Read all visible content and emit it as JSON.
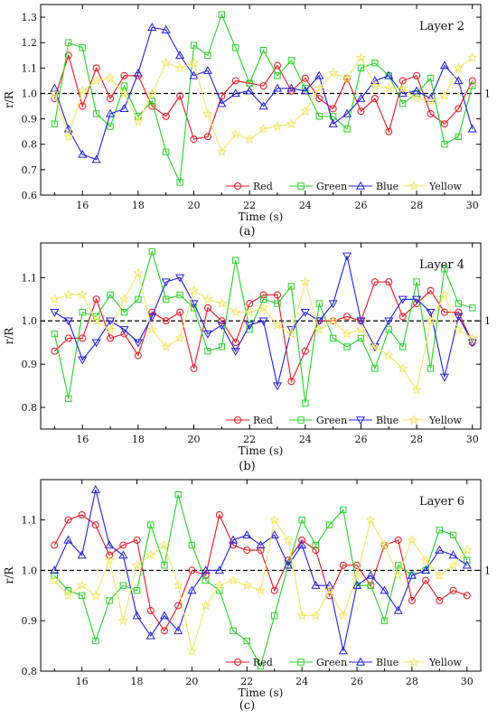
{
  "chart_data": [
    {
      "type": "line",
      "panel": "(a)",
      "title": "Layer 2",
      "xlabel": "Time (s)",
      "ylabel": "r/R",
      "xlim": [
        14.5,
        30.3
      ],
      "ylim": [
        0.6,
        1.35
      ],
      "xticks": [
        16,
        18,
        20,
        22,
        24,
        26,
        28,
        30
      ],
      "yticks": [
        0.6,
        0.7,
        0.8,
        0.9,
        1.0,
        1.1,
        1.2,
        1.3
      ],
      "ref_line": {
        "value": 1.0,
        "label": "1"
      },
      "legend": "bottom-right",
      "x": [
        15,
        15.5,
        16,
        16.5,
        17,
        17.5,
        18,
        18.5,
        19,
        19.5,
        20,
        20.5,
        21,
        21.5,
        22,
        22.5,
        23,
        23.5,
        24,
        24.5,
        25,
        25.5,
        26,
        26.5,
        27,
        27.5,
        28,
        28.5,
        29,
        29.5,
        30
      ],
      "series": [
        {
          "name": "Red",
          "color": "#e8141e",
          "marker": "circle",
          "values": [
            0.98,
            1.15,
            0.95,
            1.1,
            0.98,
            1.07,
            1.07,
            0.95,
            0.91,
            0.99,
            0.82,
            0.83,
            0.99,
            1.05,
            1.04,
            1.03,
            1.11,
            1.01,
            1.06,
            0.98,
            0.94,
            1.06,
            0.93,
            0.98,
            0.85,
            1.05,
            1.07,
            0.92,
            0.88,
            0.94,
            1.05
          ]
        },
        {
          "name": "Green",
          "color": "#28d228",
          "marker": "square",
          "values": [
            0.88,
            1.2,
            1.18,
            0.92,
            0.87,
            1.03,
            0.91,
            0.97,
            0.77,
            0.65,
            1.19,
            1.15,
            1.31,
            1.18,
            1.04,
            1.17,
            1.07,
            1.13,
            1.02,
            0.91,
            0.91,
            0.86,
            1.1,
            1.12,
            1.07,
            0.96,
            1.0,
            1.06,
            0.8,
            0.83,
            1.03
          ]
        },
        {
          "name": "Blue",
          "color": "#2020d8",
          "marker": "triangle-up",
          "values": [
            1.02,
            0.86,
            0.76,
            0.74,
            0.92,
            0.94,
            1.08,
            1.26,
            1.25,
            1.15,
            1.07,
            1.09,
            0.96,
            1.0,
            1.01,
            0.95,
            1.02,
            1.02,
            1.01,
            1.07,
            0.88,
            0.92,
            0.98,
            1.05,
            1.07,
            1.0,
            1.01,
            0.98,
            1.11,
            1.05,
            0.86
          ]
        },
        {
          "name": "Yellow",
          "color": "#f2e66a",
          "marker": "star",
          "values": [
            1.0,
            0.83,
            1.01,
            1.05,
            1.06,
            1.0,
            0.89,
            1.0,
            1.12,
            1.1,
            1.12,
            0.92,
            0.77,
            0.84,
            0.82,
            0.86,
            0.87,
            0.88,
            0.93,
            1.02,
            1.08,
            1.06,
            1.14,
            1.03,
            1.02,
            1.02,
            0.98,
            0.97,
            0.99,
            1.1,
            1.14
          ]
        }
      ]
    },
    {
      "type": "line",
      "panel": "(b)",
      "title": "Layer 4",
      "xlabel": "Time (s)",
      "ylabel": "r/R",
      "xlim": [
        14.5,
        30.3
      ],
      "ylim": [
        0.75,
        1.18
      ],
      "xticks": [
        16,
        18,
        20,
        22,
        24,
        26,
        28,
        30
      ],
      "yticks": [
        0.8,
        0.9,
        1.0,
        1.1
      ],
      "ref_line": {
        "value": 1.0,
        "label": "1"
      },
      "legend": "bottom-right",
      "x": [
        15,
        15.5,
        16,
        16.5,
        17,
        17.5,
        18,
        18.5,
        19,
        19.5,
        20,
        20.5,
        21,
        21.5,
        22,
        22.5,
        23,
        23.5,
        24,
        24.5,
        25,
        25.5,
        26,
        26.5,
        27,
        27.5,
        28,
        28.5,
        29,
        29.5,
        30
      ],
      "series": [
        {
          "name": "Red",
          "color": "#e8141e",
          "marker": "circle",
          "values": [
            0.93,
            0.96,
            0.96,
            1.05,
            0.96,
            0.97,
            0.92,
            1.02,
            1.0,
            1.02,
            0.89,
            1.03,
            1.0,
            0.95,
            1.04,
            1.06,
            1.06,
            0.86,
            0.93,
            1.0,
            1.0,
            1.01,
            1.0,
            1.09,
            1.09,
            1.01,
            1.04,
            1.07,
            1.02,
            1.02,
            0.95
          ]
        },
        {
          "name": "Green",
          "color": "#28d228",
          "marker": "square",
          "values": [
            0.97,
            0.82,
            1.02,
            1.01,
            1.06,
            1.02,
            1.05,
            1.16,
            1.05,
            1.06,
            1.03,
            0.93,
            0.94,
            1.14,
            0.98,
            1.05,
            1.04,
            1.08,
            0.81,
            1.04,
            0.96,
            0.94,
            0.96,
            0.89,
            0.98,
            0.94,
            1.09,
            0.89,
            1.12,
            1.04,
            1.03
          ]
        },
        {
          "name": "Blue",
          "color": "#2020d8",
          "marker": "triangle-down",
          "values": [
            1.02,
            1.0,
            0.91,
            0.95,
            1.0,
            0.98,
            0.95,
            1.01,
            1.09,
            1.1,
            1.04,
            0.97,
            0.99,
            0.93,
            0.99,
            1.0,
            0.85,
            0.98,
            1.02,
            1.0,
            1.04,
            1.15,
            1.0,
            0.94,
            1.0,
            1.05,
            1.05,
            1.02,
            0.87,
            1.01,
            0.95
          ]
        },
        {
          "name": "Yellow",
          "color": "#f2e66a",
          "marker": "star",
          "values": [
            1.05,
            1.06,
            1.06,
            1.0,
            0.98,
            1.05,
            1.11,
            0.98,
            0.94,
            0.96,
            1.07,
            1.05,
            1.04,
            1.02,
            1.02,
            1.03,
            0.99,
            0.97,
            1.09,
            0.98,
            1.0,
            0.97,
            0.98,
            0.94,
            0.92,
            0.89,
            0.84,
            1.0,
            1.06,
            0.98,
            0.96
          ]
        }
      ]
    },
    {
      "type": "line",
      "panel": "(c)",
      "title": "Layer 6",
      "xlabel": "Time (s)",
      "ylabel": "r/R",
      "xlim": [
        14.5,
        30.5
      ],
      "ylim": [
        0.8,
        1.18
      ],
      "xticks": [
        16,
        18,
        20,
        22,
        24,
        26,
        28,
        30
      ],
      "yticks": [
        0.8,
        0.9,
        1.0,
        1.1
      ],
      "ref_line": {
        "value": 1.0,
        "label": "1"
      },
      "legend": "bottom-right",
      "x": [
        15,
        15.5,
        16,
        16.5,
        17,
        17.5,
        18,
        18.5,
        19,
        19.5,
        20,
        20.5,
        21,
        21.5,
        22,
        22.5,
        23,
        23.5,
        24,
        24.5,
        25,
        25.5,
        26,
        26.5,
        27,
        27.5,
        28,
        28.5,
        29,
        29.5,
        30
      ],
      "series": [
        {
          "name": "Red",
          "color": "#e8141e",
          "marker": "circle",
          "values": [
            1.05,
            1.1,
            1.11,
            1.09,
            1.03,
            1.05,
            1.06,
            0.92,
            0.88,
            0.93,
            1.0,
            0.99,
            1.11,
            1.05,
            1.04,
            1.04,
            0.96,
            1.02,
            1.06,
            1.04,
            0.95,
            1.01,
            1.01,
            0.97,
            1.05,
            1.06,
            0.94,
            0.98,
            0.94,
            0.96,
            0.95
          ]
        },
        {
          "name": "Green",
          "color": "#28d228",
          "marker": "square",
          "values": [
            0.99,
            0.96,
            0.95,
            0.86,
            0.94,
            0.97,
            0.96,
            1.09,
            1.01,
            1.15,
            1.05,
            0.98,
            0.96,
            0.88,
            0.86,
            0.81,
            0.91,
            1.01,
            1.1,
            1.05,
            1.09,
            1.12,
            0.97,
            0.97,
            0.9,
            1.01,
            0.99,
            1.0,
            1.08,
            1.07,
            1.02
          ]
        },
        {
          "name": "Blue",
          "color": "#2020d8",
          "marker": "triangle-up",
          "values": [
            1.0,
            1.06,
            1.03,
            1.16,
            1.05,
            1.03,
            0.91,
            0.87,
            0.91,
            0.88,
            0.96,
            1.0,
            1.0,
            1.06,
            1.07,
            1.05,
            1.07,
            1.01,
            1.05,
            0.97,
            0.97,
            0.84,
            0.97,
            0.99,
            0.96,
            0.92,
            0.99,
            1.0,
            1.04,
            1.03,
            1.01
          ]
        },
        {
          "name": "Yellow",
          "color": "#f2e66a",
          "marker": "star",
          "values": [
            0.98,
            0.95,
            0.97,
            0.95,
            1.02,
            0.9,
            1.01,
            1.03,
            1.05,
            0.97,
            0.84,
            0.93,
            0.97,
            0.98,
            0.97,
            0.96,
            1.1,
            1.06,
            0.91,
            0.91,
            0.96,
            0.91,
            0.99,
            1.1,
            1.05,
            0.99,
            1.06,
            1.02,
            0.99,
            1.01,
            1.04
          ]
        }
      ]
    }
  ]
}
